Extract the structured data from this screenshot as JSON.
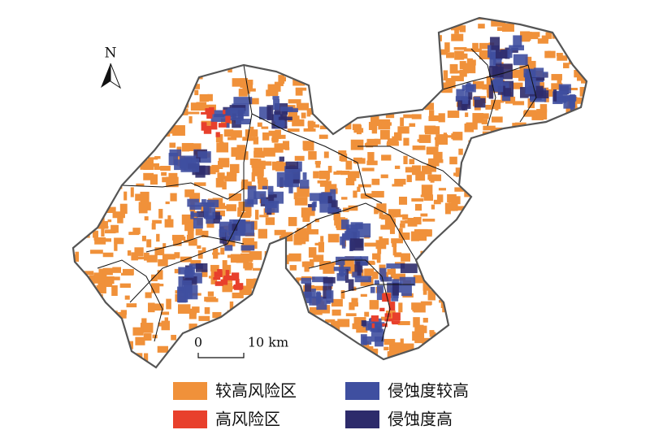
{
  "north_arrow": {
    "label": "N"
  },
  "scale_bar": {
    "labels": [
      "0",
      "10 km"
    ]
  },
  "legend": {
    "items": [
      {
        "label": "较高风险区",
        "color": "#f0913a"
      },
      {
        "label": "侵蚀度较高",
        "color": "#3f4fa0"
      },
      {
        "label": "高风险区",
        "color": "#e8402c"
      },
      {
        "label": "侵蚀度高",
        "color": "#2d2b6b"
      }
    ]
  }
}
